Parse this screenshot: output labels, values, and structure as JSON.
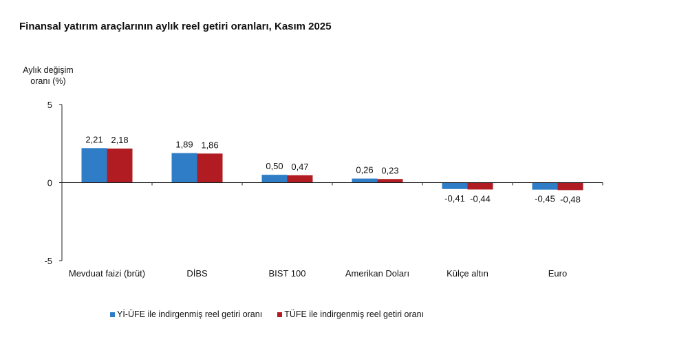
{
  "chart_data": {
    "type": "bar",
    "title": "Finansal yatırım araçlarının aylık reel getiri oranları, Kasım 2025",
    "ylabel": "Aylık değişim oranı (%)",
    "xlabel": "",
    "ylim": [
      -5,
      5
    ],
    "yticks": [
      "5",
      "0",
      "-5"
    ],
    "categories": [
      "Mevduat faizi (brüt)",
      "DİBS",
      "BIST 100",
      "Amerikan Doları",
      "Külçe altın",
      "Euro"
    ],
    "series": [
      {
        "name": "Yİ-ÜFE ile indirgenmiş reel getiri oranı",
        "color": "#2f7dc6",
        "values": [
          2.21,
          1.89,
          0.5,
          0.26,
          -0.41,
          -0.45
        ],
        "labels": [
          "2,21",
          "1,89",
          "0,50",
          "0,26",
          "-0,41",
          "-0,45"
        ]
      },
      {
        "name": "TÜFE ile indirgenmiş reel getiri oranı",
        "color": "#b01c22",
        "values": [
          2.18,
          1.86,
          0.47,
          0.23,
          -0.44,
          -0.48
        ],
        "labels": [
          "2,18",
          "1,86",
          "0,47",
          "0,23",
          "-0,44",
          "-0,48"
        ]
      }
    ],
    "legend_position": "bottom",
    "grid": false
  }
}
